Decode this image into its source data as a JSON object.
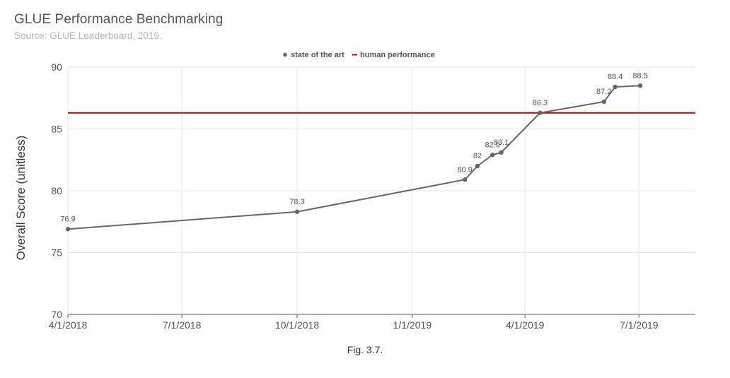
{
  "chart_data": {
    "type": "line",
    "title": "GLUE Performance Benchmarking",
    "subtitle": "Source: GLUE Leaderboard, 2019.",
    "xlabel": "",
    "ylabel": "Overall Score (unitless)",
    "ylim": [
      70,
      90
    ],
    "yticks": [
      70,
      75,
      80,
      85,
      90
    ],
    "xlim": [
      "2018-04-01",
      "2019-08-15"
    ],
    "xticks": [
      "2018-04-01",
      "2018-07-01",
      "2018-10-01",
      "2019-01-01",
      "2019-04-01",
      "2019-07-01"
    ],
    "xtick_labels": [
      "4/1/2018",
      "7/1/2018",
      "10/1/2018",
      "1/1/2019",
      "4/1/2019",
      "7/1/2019"
    ],
    "grid": true,
    "legend": {
      "placement": "top-center",
      "entries": [
        {
          "name": "state of the art",
          "color": "#666666",
          "marker": "dot"
        },
        {
          "name": "human performance",
          "color": "#cc0000",
          "marker": "dash"
        }
      ]
    },
    "series": [
      {
        "name": "state of the art",
        "color": "#666666",
        "x": [
          "2018-04-01",
          "2018-10-01",
          "2019-02-12",
          "2019-02-22",
          "2019-03-06",
          "2019-03-13",
          "2019-04-13",
          "2019-06-03",
          "2019-06-12",
          "2019-07-02"
        ],
        "values": [
          76.9,
          78.3,
          80.9,
          82,
          82.9,
          83.1,
          86.3,
          87.2,
          88.4,
          88.5
        ],
        "labels": [
          "76.9",
          "78.3",
          "80.9",
          "82",
          "82.9",
          "83.1",
          "86.3",
          "87.2",
          "88.4",
          "88.5"
        ]
      },
      {
        "name": "human performance",
        "color": "#cc0000",
        "type": "constant",
        "values": [
          86.3
        ]
      }
    ]
  },
  "caption": "Fig. 3.7."
}
